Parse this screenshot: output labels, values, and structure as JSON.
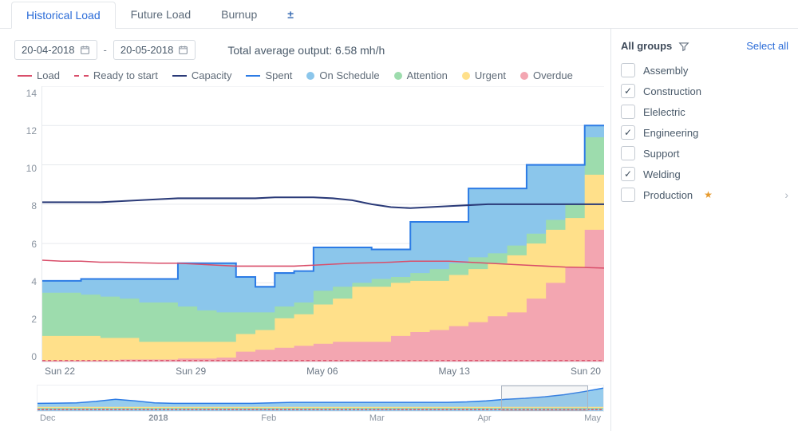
{
  "tabs": {
    "items": [
      "Historical Load",
      "Future Load",
      "Burnup"
    ],
    "active_index": 0,
    "add_icon": "±"
  },
  "date_range": {
    "from": "20-04-2018",
    "to": "20-05-2018",
    "separator": "-"
  },
  "average_output": {
    "label": "Total average output:",
    "value": "6.58 mh/h"
  },
  "legend": {
    "load": {
      "label": "Load",
      "color": "#d94e6a",
      "style": "solid"
    },
    "ready": {
      "label": "Ready to start",
      "color": "#d94e6a",
      "style": "dashed"
    },
    "capacity": {
      "label": "Capacity",
      "color": "#2a3a78",
      "style": "solid"
    },
    "spent": {
      "label": "Spent",
      "color": "#2c7be5",
      "style": "solid"
    },
    "sched": {
      "label": "On Schedule",
      "color": "#8bc6eb"
    },
    "attn": {
      "label": "Attention",
      "color": "#9ddcad"
    },
    "urgent": {
      "label": "Urgent",
      "color": "#ffe08a"
    },
    "over": {
      "label": "Overdue",
      "color": "#f3a6b1"
    }
  },
  "chart": {
    "type": "stacked-area-with-lines",
    "y": {
      "min": 0,
      "max": 14,
      "step": 2
    },
    "x_labels": [
      "Sun 22",
      "Sun 29",
      "May 06",
      "May 13",
      "Sun 20"
    ],
    "background": "#ffffff",
    "grid_color": "#e6e9ed",
    "colors": {
      "overdue": "#f3a6b1",
      "urgent": "#ffe08a",
      "attention": "#9ddcad",
      "on_schedule": "#8bc6eb",
      "spent_line": "#2c7be5",
      "capacity_line": "#2a3a78",
      "load_line": "#d94e6a",
      "ready_line": "#d94e6a"
    },
    "series": {
      "overdue": [
        0.05,
        0.05,
        0.05,
        0.05,
        0.1,
        0.1,
        0.1,
        0.15,
        0.15,
        0.2,
        0.5,
        0.6,
        0.7,
        0.8,
        0.9,
        1.0,
        1.0,
        1.0,
        1.3,
        1.5,
        1.6,
        1.8,
        2.0,
        2.3,
        2.5,
        3.2,
        4.0,
        4.8,
        6.7,
        7.2
      ],
      "urgent": [
        1.3,
        1.3,
        1.3,
        1.2,
        1.2,
        1.0,
        1.0,
        1.0,
        1.0,
        1.0,
        1.4,
        1.6,
        2.2,
        2.4,
        2.9,
        3.2,
        3.8,
        3.8,
        4.0,
        4.1,
        4.1,
        4.4,
        4.7,
        5.0,
        5.4,
        6.0,
        6.7,
        7.3,
        9.5,
        10.0
      ],
      "attention": [
        3.5,
        3.5,
        3.4,
        3.3,
        3.2,
        3.0,
        3.0,
        2.8,
        2.6,
        2.5,
        2.5,
        2.5,
        2.8,
        3.0,
        3.6,
        3.8,
        4.0,
        4.2,
        4.3,
        4.5,
        4.7,
        5.0,
        5.3,
        5.5,
        5.9,
        6.5,
        7.2,
        8.0,
        11.4,
        12.8
      ],
      "on_schedule": [
        4.1,
        4.1,
        4.2,
        4.2,
        4.2,
        4.2,
        4.2,
        5.0,
        5.0,
        5.0,
        4.3,
        3.8,
        4.5,
        4.6,
        5.8,
        5.8,
        5.8,
        5.7,
        5.7,
        7.1,
        7.1,
        7.1,
        8.8,
        8.8,
        8.8,
        10.0,
        10.0,
        10.0,
        12.0,
        12.0
      ],
      "capacity": [
        8.1,
        8.1,
        8.1,
        8.1,
        8.15,
        8.2,
        8.25,
        8.3,
        8.3,
        8.3,
        8.3,
        8.3,
        8.35,
        8.35,
        8.35,
        8.3,
        8.2,
        8.0,
        7.85,
        7.8,
        7.85,
        7.9,
        7.95,
        8.0,
        8.0,
        8.0,
        8.0,
        8.0,
        8.0,
        8.0
      ],
      "load": [
        5.15,
        5.1,
        5.1,
        5.05,
        5.05,
        5.02,
        5.0,
        5.0,
        4.95,
        4.9,
        4.85,
        4.85,
        4.85,
        4.85,
        4.9,
        4.95,
        5.0,
        5.02,
        5.05,
        5.1,
        5.1,
        5.1,
        5.05,
        5.0,
        4.95,
        4.9,
        4.85,
        4.8,
        4.78,
        4.75
      ],
      "ready": [
        0.05,
        0.05,
        0.05,
        0.05,
        0.05,
        0.05,
        0.05,
        0.05,
        0.05,
        0.05,
        0.05,
        0.05,
        0.05,
        0.05,
        0.05,
        0.05,
        0.05,
        0.05,
        0.05,
        0.05,
        0.05,
        0.05,
        0.05,
        0.05,
        0.05,
        0.05,
        0.05,
        0.05,
        0.05,
        0.05
      ]
    }
  },
  "minimap": {
    "x_labels": [
      "Dec",
      "2018",
      "Feb",
      "Mar",
      "Apr",
      "May"
    ],
    "selection": {
      "left_pct": 82,
      "width_pct": 15
    },
    "series_top": [
      0.3,
      0.31,
      0.32,
      0.38,
      0.46,
      0.4,
      0.32,
      0.3,
      0.3,
      0.3,
      0.3,
      0.3,
      0.32,
      0.34,
      0.34,
      0.34,
      0.34,
      0.34,
      0.34,
      0.34,
      0.34,
      0.34,
      0.36,
      0.4,
      0.46,
      0.5,
      0.56,
      0.64,
      0.76,
      0.9
    ],
    "colors": {
      "fill": "#8bc6eb",
      "line": "#2c7be5",
      "low_line": "#d94e6a",
      "urgent": "#ffe08a",
      "attn": "#9ddcad"
    }
  },
  "sidebar": {
    "title": "All groups",
    "select_all": "Select all",
    "items": [
      {
        "label": "Assembly",
        "checked": false
      },
      {
        "label": "Construction",
        "checked": true
      },
      {
        "label": "Elelectric",
        "checked": false
      },
      {
        "label": "Engineering",
        "checked": true
      },
      {
        "label": "Support",
        "checked": false
      },
      {
        "label": "Welding",
        "checked": true
      },
      {
        "label": "Production",
        "checked": false,
        "starred": true,
        "expandable": true
      }
    ]
  }
}
